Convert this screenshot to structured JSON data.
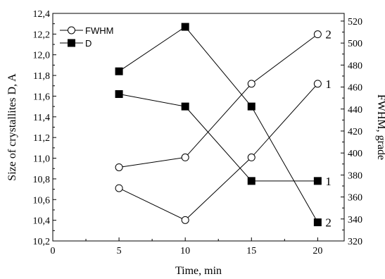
{
  "chart_data": {
    "type": "line",
    "xlabel": "Time, min",
    "ylabel_left": "Size of crystallites D, A",
    "ylabel_right": "FWHM, grade",
    "xlim": [
      0,
      22
    ],
    "ylim_left": [
      10.2,
      12.4
    ],
    "ylim_right": [
      320,
      527
    ],
    "x_ticks": [
      "0",
      "5",
      "10",
      "15",
      "20"
    ],
    "y_left_ticks": [
      "10,2",
      "10,4",
      "10,6",
      "10,8",
      "11,0",
      "11,2",
      "11,4",
      "11,6",
      "11,8",
      "12,0",
      "12,2",
      "12,4"
    ],
    "y_right_ticks": [
      "320",
      "340",
      "360",
      "380",
      "400",
      "420",
      "440",
      "460",
      "480",
      "500",
      "520"
    ],
    "legend": [
      {
        "label": "FWHM",
        "marker": "open-circle"
      },
      {
        "label": "D",
        "marker": "filled-square"
      }
    ],
    "legend_position": "top-left",
    "series": [
      {
        "legend": "FWHM",
        "label": "2",
        "axis": "right",
        "marker": "open-circle",
        "x": [
          5,
          10,
          15,
          20
        ],
        "y": [
          387,
          396,
          463,
          508
        ]
      },
      {
        "legend": "FWHM",
        "label": "1",
        "axis": "right",
        "marker": "open-circle",
        "x": [
          5,
          10,
          15,
          20
        ],
        "y": [
          368,
          339,
          396,
          463
        ]
      },
      {
        "legend": "D",
        "label": "2",
        "axis": "left",
        "marker": "filled-square",
        "x": [
          5,
          10,
          15,
          20
        ],
        "y": [
          11.84,
          12.27,
          11.5,
          10.38
        ]
      },
      {
        "legend": "D",
        "label": "1",
        "axis": "left",
        "marker": "filled-square",
        "x": [
          5,
          10,
          15,
          20
        ],
        "y": [
          11.62,
          11.5,
          10.78,
          10.78
        ]
      }
    ],
    "grid": false
  }
}
